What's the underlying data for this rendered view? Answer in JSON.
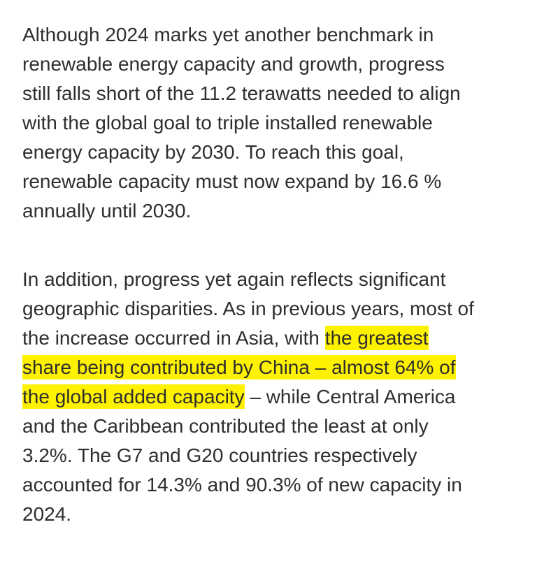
{
  "paragraphs": [
    {
      "lines": [
        [
          {
            "text": "Although 2024 marks yet another benchmark in"
          }
        ],
        [
          {
            "text": "renewable energy capacity and growth, progress"
          }
        ],
        [
          {
            "text": "still falls short of the 11.2 terawatts needed to align"
          }
        ],
        [
          {
            "text": "with the global goal to triple installed renewable"
          }
        ],
        [
          {
            "text": "energy capacity by 2030. To reach this goal,"
          }
        ],
        [
          {
            "text": "renewable capacity must now expand by 16.6 %"
          }
        ],
        [
          {
            "text": "annually until 2030."
          }
        ]
      ]
    },
    {
      "lines": [
        [
          {
            "text": "In addition, progress yet again reflects significant"
          }
        ],
        [
          {
            "text": "geographic disparities. As in previous years, most of"
          }
        ],
        [
          {
            "text": "the increase occurred in Asia, with "
          },
          {
            "text": "the greatest",
            "highlight": true
          }
        ],
        [
          {
            "text": "share being contributed by China – almost 64% of",
            "highlight": true
          }
        ],
        [
          {
            "text": "the global added capacity",
            "highlight": true
          },
          {
            "text": " – while Central America"
          }
        ],
        [
          {
            "text": "and the Caribbean contributed the least at only"
          }
        ],
        [
          {
            "text": "3.2%. The G7 and G20 countries respectively"
          }
        ],
        [
          {
            "text": "accounted for 14.3% and 90.3% of new capacity in"
          }
        ],
        [
          {
            "text": "2024."
          }
        ]
      ]
    }
  ]
}
